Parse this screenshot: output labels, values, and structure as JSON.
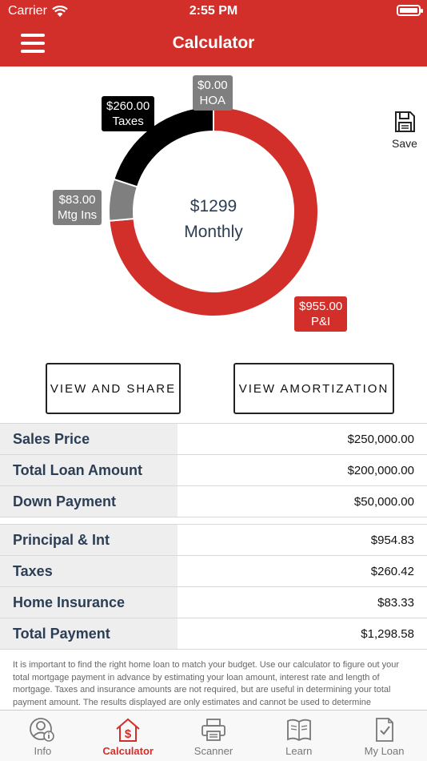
{
  "status_bar": {
    "carrier": "Carrier",
    "time": "2:55 PM"
  },
  "header": {
    "title": "Calculator"
  },
  "chart_data": {
    "type": "pie",
    "variant": "donut",
    "center_amount": "$1299",
    "center_label": "Monthly",
    "slices": [
      {
        "name": "P&I",
        "value": 955.0,
        "value_label": "$955.00",
        "color": "#d32f2a"
      },
      {
        "name": "Mtg Ins",
        "value": 83.0,
        "value_label": "$83.00",
        "color": "#7f7f7f"
      },
      {
        "name": "Taxes",
        "value": 260.0,
        "value_label": "$260.00",
        "color": "#000000"
      },
      {
        "name": "HOA",
        "value": 0.0,
        "value_label": "$0.00",
        "color": "#7f7f7f"
      }
    ]
  },
  "save": {
    "label": "Save",
    "icon": "floppy-disk-icon"
  },
  "buttons": {
    "view_share": "VIEW AND SHARE",
    "view_amortization": "VIEW AMORTIZATION"
  },
  "loan_rows": [
    {
      "label": "Sales Price",
      "value": "$250,000.00"
    },
    {
      "label": "Total Loan Amount",
      "value": "$200,000.00"
    },
    {
      "label": "Down Payment",
      "value": "$50,000.00"
    }
  ],
  "payment_rows": [
    {
      "label": "Principal & Int",
      "value": "$954.83"
    },
    {
      "label": "Taxes",
      "value": "$260.42"
    },
    {
      "label": "Home Insurance",
      "value": "$83.33"
    },
    {
      "label": "Total Payment",
      "value": "$1,298.58"
    }
  ],
  "disclaimer": "It is important to find the right home loan to match your budget. Use our calculator to figure out your total mortgage payment in advance by estimating your loan amount, interest rate and length of mortgage. Taxes and insurance amounts are not required, but are useful in determining your total payment amount. The results displayed are only estimates and cannot be used to determine",
  "tabs": [
    {
      "label": "Info",
      "icon": "user-info-icon"
    },
    {
      "label": "Calculator",
      "icon": "house-dollar-icon",
      "active": true
    },
    {
      "label": "Scanner",
      "icon": "printer-icon"
    },
    {
      "label": "Learn",
      "icon": "book-icon"
    },
    {
      "label": "My Loan",
      "icon": "document-check-icon"
    }
  ],
  "colors": {
    "brand": "#d32f2a",
    "navy": "#2c3e55"
  }
}
